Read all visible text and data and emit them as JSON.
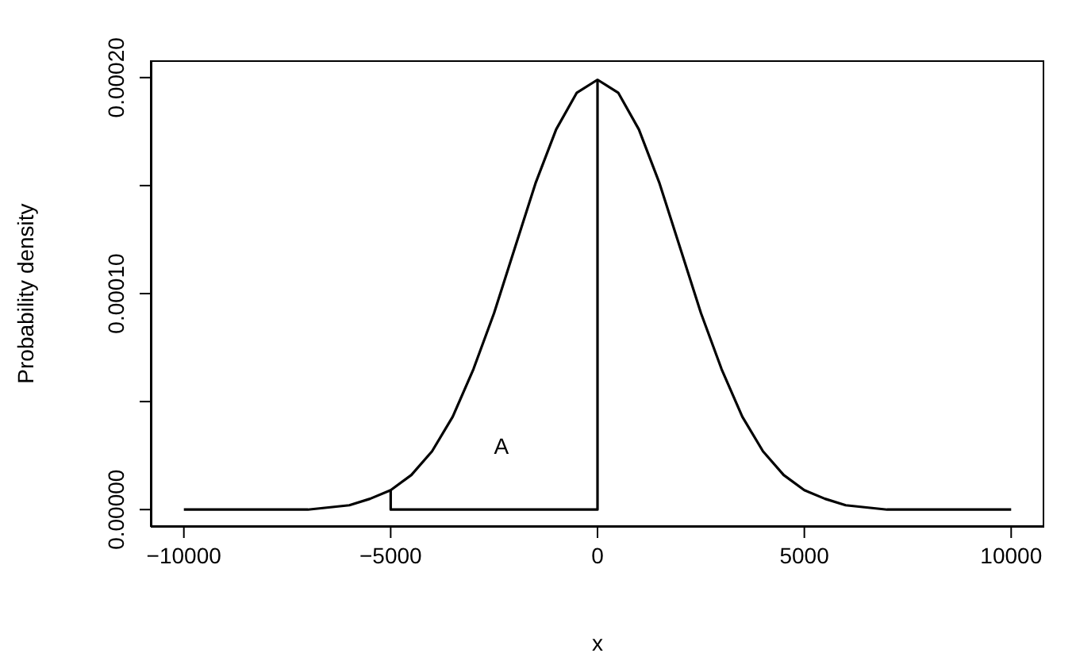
{
  "chart_data": {
    "type": "line",
    "xlabel": "x",
    "ylabel": "Probability density",
    "xlim": [
      -10800,
      10800
    ],
    "ylim": [
      -8e-06,
      0.000208
    ],
    "xticks": [
      {
        "value": -10000,
        "label": "−10000"
      },
      {
        "value": -5000,
        "label": "−5000"
      },
      {
        "value": 0,
        "label": "0"
      },
      {
        "value": 5000,
        "label": "5000"
      },
      {
        "value": 10000,
        "label": "10000"
      }
    ],
    "yticks": [
      {
        "value": 0,
        "label": "0.00000"
      },
      {
        "value": 5e-05,
        "label": null
      },
      {
        "value": 0.0001,
        "label": "0.00010"
      },
      {
        "value": 0.00015,
        "label": null
      },
      {
        "value": 0.0002,
        "label": "0.00020"
      }
    ],
    "series": [
      {
        "color": "#000000",
        "x": [
          -10000,
          -9000,
          -8000,
          -7000,
          -6500,
          -6000,
          -5500,
          -5000,
          -4500,
          -4000,
          -3500,
          -3000,
          -2500,
          -2000,
          -1500,
          -1000,
          -500,
          0,
          500,
          1000,
          1500,
          2000,
          2500,
          3000,
          3500,
          4000,
          4500,
          5000,
          5500,
          6000,
          6500,
          7000,
          8000,
          9000,
          10000
        ],
        "values": [
          0,
          0,
          0,
          0,
          1e-06,
          2e-06,
          5e-06,
          9e-06,
          1.6e-05,
          2.7e-05,
          4.3e-05,
          6.5e-05,
          9.1e-05,
          0.000121,
          0.000151,
          0.000176,
          0.000193,
          0.000199,
          0.000193,
          0.000176,
          0.000151,
          0.000121,
          9.1e-05,
          6.5e-05,
          4.3e-05,
          2.7e-05,
          1.6e-05,
          9e-06,
          5e-06,
          2e-06,
          1e-06,
          0,
          0,
          0,
          0
        ]
      },
      {
        "color": "#000000",
        "x": [
          -5000,
          -5000,
          0,
          0
        ],
        "values": [
          9e-06,
          0,
          0,
          0.000199
        ]
      }
    ],
    "annotations": [
      "A"
    ],
    "grid": false,
    "legend": false,
    "marker": "none",
    "line_style": "solid"
  }
}
